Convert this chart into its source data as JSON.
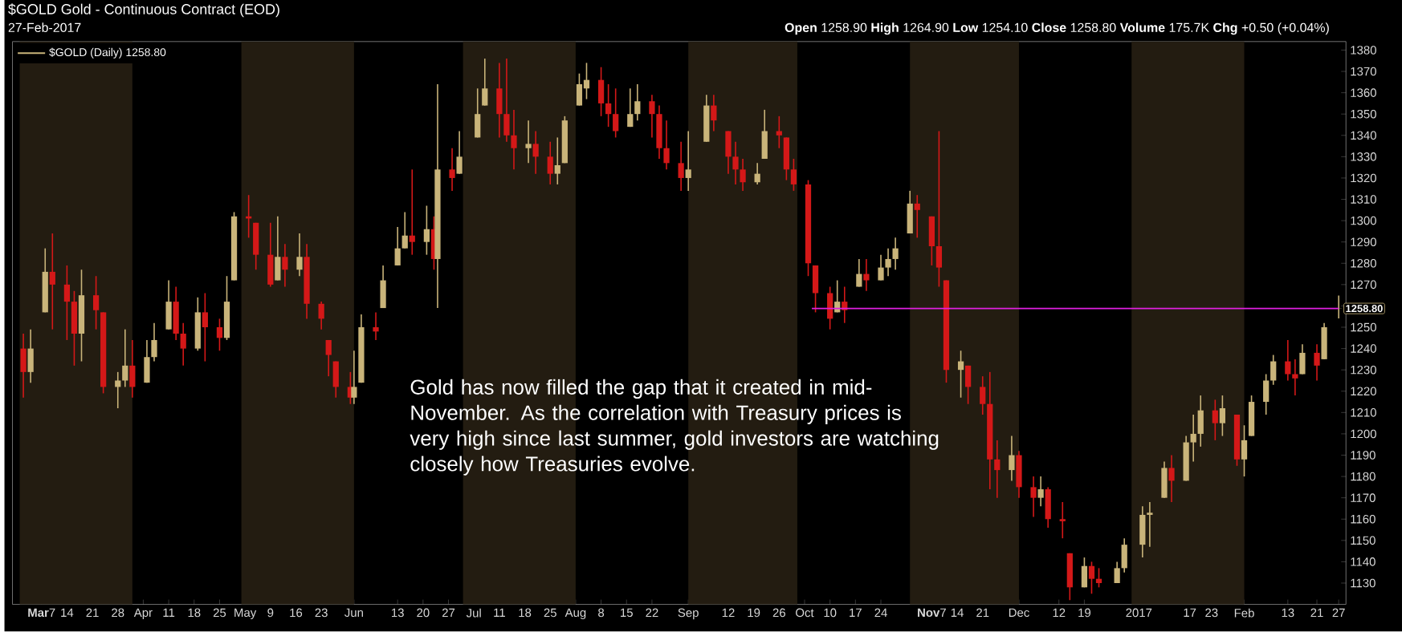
{
  "chart_data": {
    "type": "candlestick",
    "title": "$GOLD Gold - Continuous Contract (EOD)",
    "subtitle": "27-Feb-2017",
    "annotations": [
      "**Open** 1258.90 **High** 1264.90 **Low** 1254.10 **Close** 1258.80 **Volume** 175.7K **Chg** +0.50 (+0.04%)",
      "Gold has now filled the gap that it created in mid-November. As the correlation with Treasury prices is very high since last summer, gold investors are watching closely how Treasuries evolve.",
      {
        "text": "1258.80",
        "x": "2017-02-27",
        "y": 1258.8
      }
    ],
    "legend": "top left",
    "xlim": [
      "2016-02-28",
      "2017-03-01"
    ],
    "xticks": [
      {
        "value": "2016-03-07",
        "label": "**Mar**7"
      },
      {
        "value": "2016-03-14",
        "label": "14"
      },
      {
        "value": "2016-03-21",
        "label": "21"
      },
      {
        "value": "2016-03-28",
        "label": "28"
      },
      {
        "value": "2016-04-04",
        "label": "Apr"
      },
      {
        "value": "2016-04-11",
        "label": "11"
      },
      {
        "value": "2016-04-18",
        "label": "18"
      },
      {
        "value": "2016-04-25",
        "label": "25"
      },
      {
        "value": "2016-05-02",
        "label": "May"
      },
      {
        "value": "2016-05-09",
        "label": "9"
      },
      {
        "value": "2016-05-16",
        "label": "16"
      },
      {
        "value": "2016-05-23",
        "label": "23"
      },
      {
        "value": "2016-06-01",
        "label": "Jun"
      },
      {
        "value": "2016-06-13",
        "label": "13"
      },
      {
        "value": "2016-06-20",
        "label": "20"
      },
      {
        "value": "2016-06-27",
        "label": "27"
      },
      {
        "value": "2016-07-04",
        "label": "Jul"
      },
      {
        "value": "2016-07-11",
        "label": "11"
      },
      {
        "value": "2016-07-18",
        "label": "18"
      },
      {
        "value": "2016-07-25",
        "label": "25"
      },
      {
        "value": "2016-08-01",
        "label": "Aug"
      },
      {
        "value": "2016-08-08",
        "label": "8"
      },
      {
        "value": "2016-08-15",
        "label": "15"
      },
      {
        "value": "2016-08-22",
        "label": "22"
      },
      {
        "value": "2016-09-01",
        "label": "Sep"
      },
      {
        "value": "2016-09-12",
        "label": "12"
      },
      {
        "value": "2016-09-19",
        "label": "19"
      },
      {
        "value": "2016-09-26",
        "label": "26"
      },
      {
        "value": "2016-10-03",
        "label": "Oct"
      },
      {
        "value": "2016-10-10",
        "label": "10"
      },
      {
        "value": "2016-10-17",
        "label": "17"
      },
      {
        "value": "2016-10-24",
        "label": "24"
      },
      {
        "value": "2016-11-07",
        "label": "**Nov**7"
      },
      {
        "value": "2016-11-14",
        "label": "14"
      },
      {
        "value": "2016-11-21",
        "label": "21"
      },
      {
        "value": "2016-12-01",
        "label": "Dec"
      },
      {
        "value": "2016-12-12",
        "label": "12"
      },
      {
        "value": "2016-12-19",
        "label": "19"
      },
      {
        "value": "2017-01-03",
        "label": "2017"
      },
      {
        "value": "2017-01-17",
        "label": "17"
      },
      {
        "value": "2017-01-23",
        "label": "23"
      },
      {
        "value": "2017-02-01",
        "label": "Feb"
      },
      {
        "value": "2017-02-13",
        "label": "13"
      },
      {
        "value": "2017-02-21",
        "label": "21"
      },
      {
        "value": "2017-02-27",
        "label": "27"
      }
    ],
    "ylim": [
      1120,
      1384
    ],
    "yticks": [
      1130,
      1140,
      1150,
      1160,
      1170,
      1180,
      1190,
      1200,
      1210,
      1220,
      1230,
      1240,
      1250,
      {
        "value": 1260,
        "label": null
      },
      1270,
      1280,
      1290,
      1300,
      1310,
      1320,
      1330,
      1340,
      1350,
      1360,
      1370,
      1380
    ],
    "bands": [
      {
        "axis": "x",
        "from": "2016-03-01",
        "to": "2016-04-01",
        "color": "#231c11"
      },
      {
        "axis": "x",
        "from": "2016-05-01",
        "to": "2016-06-01",
        "color": "#231c11"
      },
      {
        "axis": "x",
        "from": "2016-07-01",
        "to": "2016-08-01",
        "color": "#231c11"
      },
      {
        "axis": "x",
        "from": "2016-09-01",
        "to": "2016-10-01",
        "color": "#231c11"
      },
      {
        "axis": "x",
        "from": "2016-11-01",
        "to": "2016-12-01",
        "color": "#231c11"
      },
      {
        "axis": "x",
        "from": "2017-01-01",
        "to": "2017-02-01",
        "color": "#231c11"
      }
    ],
    "series": [
      {
        "type": "candlestick",
        "name": "$GOLD (Daily) 1258.80",
        "x": [
          "2016-03-02",
          "2016-03-04",
          "2016-03-08",
          "2016-03-10",
          "2016-03-14",
          "2016-03-16",
          "2016-03-18",
          "2016-03-22",
          "2016-03-24",
          "2016-03-28",
          "2016-03-30",
          "2016-04-01",
          "2016-04-05",
          "2016-04-07",
          "2016-04-11",
          "2016-04-13",
          "2016-04-15",
          "2016-04-19",
          "2016-04-21",
          "2016-04-25",
          "2016-04-27",
          "2016-04-29",
          "2016-05-03",
          "2016-05-05",
          "2016-05-09",
          "2016-05-11",
          "2016-05-13",
          "2016-05-17",
          "2016-05-19",
          "2016-05-23",
          "2016-05-25",
          "2016-05-27",
          "2016-05-31",
          "2016-06-01",
          "2016-06-03",
          "2016-06-07",
          "2016-06-09",
          "2016-06-13",
          "2016-06-15",
          "2016-06-17",
          "2016-06-21",
          "2016-06-23",
          "2016-06-24",
          "2016-06-28",
          "2016-06-30",
          "2016-07-05",
          "2016-07-07",
          "2016-07-11",
          "2016-07-13",
          "2016-07-15",
          "2016-07-19",
          "2016-07-21",
          "2016-07-25",
          "2016-07-27",
          "2016-07-29",
          "2016-08-02",
          "2016-08-04",
          "2016-08-08",
          "2016-08-10",
          "2016-08-12",
          "2016-08-16",
          "2016-08-18",
          "2016-08-22",
          "2016-08-24",
          "2016-08-26",
          "2016-08-30",
          "2016-09-01",
          "2016-09-06",
          "2016-09-08",
          "2016-09-12",
          "2016-09-14",
          "2016-09-16",
          "2016-09-20",
          "2016-09-22",
          "2016-09-26",
          "2016-09-28",
          "2016-09-30",
          "2016-10-04",
          "2016-10-06",
          "2016-10-10",
          "2016-10-12",
          "2016-10-14",
          "2016-10-18",
          "2016-10-20",
          "2016-10-24",
          "2016-10-26",
          "2016-10-28",
          "2016-11-01",
          "2016-11-03",
          "2016-11-07",
          "2016-11-09",
          "2016-11-11",
          "2016-11-15",
          "2016-11-17",
          "2016-11-21",
          "2016-11-23",
          "2016-11-25",
          "2016-11-29",
          "2016-12-01",
          "2016-12-05",
          "2016-12-07",
          "2016-12-09",
          "2016-12-13",
          "2016-12-15",
          "2016-12-19",
          "2016-12-21",
          "2016-12-23",
          "2016-12-28",
          "2016-12-30",
          "2017-01-04",
          "2017-01-06",
          "2017-01-10",
          "2017-01-12",
          "2017-01-16",
          "2017-01-18",
          "2017-01-20",
          "2017-01-24",
          "2017-01-26",
          "2017-01-30",
          "2017-02-01",
          "2017-02-03",
          "2017-02-07",
          "2017-02-09",
          "2017-02-13",
          "2017-02-15",
          "2017-02-17",
          "2017-02-21",
          "2017-02-23",
          "2017-02-27"
        ],
        "ohlc": [
          [
            1240,
            1247,
            1217,
            1229
          ],
          [
            1229,
            1249,
            1224,
            1240
          ],
          [
            1257,
            1287,
            1257,
            1276
          ],
          [
            1276,
            1294,
            1249,
            1270
          ],
          [
            1270,
            1279,
            1244,
            1262
          ],
          [
            1262,
            1267,
            1232,
            1247
          ],
          [
            1247,
            1277,
            1234,
            1265
          ],
          [
            1265,
            1274,
            1249,
            1258
          ],
          [
            1257,
            1257,
            1219,
            1222
          ],
          [
            1222,
            1229,
            1212,
            1225
          ],
          [
            1225,
            1249,
            1222,
            1232
          ],
          [
            1232,
            1244,
            1217,
            1222
          ],
          [
            1224,
            1244,
            1224,
            1236
          ],
          [
            1236,
            1252,
            1234,
            1244
          ],
          [
            1249,
            1272,
            1249,
            1262
          ],
          [
            1262,
            1269,
            1244,
            1247
          ],
          [
            1247,
            1252,
            1232,
            1240
          ],
          [
            1240,
            1264,
            1239,
            1257
          ],
          [
            1257,
            1266,
            1234,
            1250
          ],
          [
            1250,
            1254,
            1239,
            1245
          ],
          [
            1245,
            1274,
            1244,
            1262
          ],
          [
            1272,
            1304,
            1272,
            1302
          ],
          [
            1302,
            1312,
            1292,
            1301
          ],
          [
            1299,
            1299,
            1277,
            1284
          ],
          [
            1284,
            1299,
            1269,
            1270
          ],
          [
            1272,
            1302,
            1272,
            1283
          ],
          [
            1283,
            1289,
            1269,
            1277
          ],
          [
            1277,
            1294,
            1274,
            1283
          ],
          [
            1283,
            1289,
            1254,
            1261
          ],
          [
            1261,
            1262,
            1249,
            1254
          ],
          [
            1244,
            1244,
            1227,
            1237
          ],
          [
            1234,
            1234,
            1217,
            1222
          ],
          [
            1222,
            1229,
            1214,
            1217
          ],
          [
            1217,
            1239,
            1214,
            1222
          ],
          [
            1224,
            1256,
            1224,
            1250
          ],
          [
            1250,
            1257,
            1244,
            1248
          ],
          [
            1259,
            1279,
            1259,
            1272
          ],
          [
            1279,
            1297,
            1279,
            1287
          ],
          [
            1287,
            1304,
            1287,
            1293
          ],
          [
            1293,
            1324,
            1284,
            1290
          ],
          [
            1290,
            1307,
            1284,
            1296
          ],
          [
            1296,
            1302,
            1277,
            1282
          ],
          [
            1282,
            1364,
            1259,
            1324
          ],
          [
            1324,
            1334,
            1314,
            1320
          ],
          [
            1322,
            1342,
            1322,
            1330
          ],
          [
            1339,
            1362,
            1339,
            1350
          ],
          [
            1354,
            1376,
            1354,
            1362
          ],
          [
            1362,
            1374,
            1339,
            1350
          ],
          [
            1350,
            1376,
            1337,
            1340
          ],
          [
            1340,
            1352,
            1324,
            1334
          ],
          [
            1334,
            1347,
            1327,
            1336
          ],
          [
            1336,
            1342,
            1322,
            1330
          ],
          [
            1330,
            1337,
            1317,
            1322
          ],
          [
            1322,
            1339,
            1317,
            1326
          ],
          [
            1327,
            1349,
            1327,
            1347
          ],
          [
            1354,
            1369,
            1354,
            1364
          ],
          [
            1362,
            1374,
            1357,
            1366
          ],
          [
            1366,
            1372,
            1349,
            1355
          ],
          [
            1355,
            1364,
            1344,
            1350
          ],
          [
            1350,
            1362,
            1339,
            1342
          ],
          [
            1344,
            1362,
            1344,
            1350
          ],
          [
            1350,
            1364,
            1347,
            1356
          ],
          [
            1356,
            1359,
            1339,
            1350
          ],
          [
            1350,
            1354,
            1329,
            1334
          ],
          [
            1334,
            1347,
            1324,
            1327
          ],
          [
            1327,
            1337,
            1314,
            1320
          ],
          [
            1320,
            1342,
            1314,
            1324
          ],
          [
            1337,
            1359,
            1337,
            1354
          ],
          [
            1354,
            1359,
            1342,
            1347
          ],
          [
            1342,
            1342,
            1322,
            1330
          ],
          [
            1330,
            1337,
            1317,
            1324
          ],
          [
            1324,
            1329,
            1314,
            1318
          ],
          [
            1318,
            1327,
            1317,
            1322
          ],
          [
            1329,
            1352,
            1329,
            1342
          ],
          [
            1342,
            1349,
            1334,
            1340
          ],
          [
            1339,
            1339,
            1319,
            1324
          ],
          [
            1324,
            1329,
            1314,
            1317
          ],
          [
            1317,
            1319,
            1274,
            1280
          ],
          [
            1279,
            1279,
            1257,
            1266
          ],
          [
            1266,
            1269,
            1249,
            1254
          ],
          [
            1257,
            1272,
            1257,
            1262
          ],
          [
            1262,
            1269,
            1252,
            1258
          ],
          [
            1269,
            1282,
            1269,
            1275
          ],
          [
            1275,
            1282,
            1267,
            1272
          ],
          [
            1272,
            1284,
            1272,
            1278
          ],
          [
            1278,
            1287,
            1274,
            1282
          ],
          [
            1282,
            1292,
            1277,
            1287
          ],
          [
            1294,
            1314,
            1294,
            1308
          ],
          [
            1308,
            1312,
            1292,
            1305
          ],
          [
            1302,
            1302,
            1279,
            1288
          ],
          [
            1288,
            1342,
            1269,
            1278
          ],
          [
            1272,
            1272,
            1224,
            1230
          ],
          [
            1230,
            1239,
            1217,
            1234
          ],
          [
            1232,
            1232,
            1214,
            1222
          ],
          [
            1222,
            1227,
            1209,
            1214
          ],
          [
            1214,
            1229,
            1174,
            1188
          ],
          [
            1188,
            1197,
            1170,
            1183
          ],
          [
            1183,
            1199,
            1178,
            1190
          ],
          [
            1190,
            1192,
            1170,
            1175
          ],
          [
            1175,
            1180,
            1161,
            1170
          ],
          [
            1170,
            1180,
            1166,
            1174
          ],
          [
            1174,
            1175,
            1156,
            1160
          ],
          [
            1160,
            1168,
            1151,
            1159
          ],
          [
            1144,
            1144,
            1122,
            1128
          ],
          [
            1128,
            1142,
            1128,
            1138
          ],
          [
            1138,
            1140,
            1125,
            1132
          ],
          [
            1132,
            1137,
            1128,
            1130
          ],
          [
            1130,
            1140,
            1130,
            1137
          ],
          [
            1137,
            1151,
            1135,
            1148
          ],
          [
            1148,
            1166,
            1142,
            1162
          ],
          [
            1162,
            1168,
            1147,
            1163
          ],
          [
            1170,
            1187,
            1170,
            1184
          ],
          [
            1184,
            1190,
            1168,
            1178
          ],
          [
            1178,
            1199,
            1178,
            1196
          ],
          [
            1196,
            1209,
            1187,
            1200
          ],
          [
            1200,
            1218,
            1194,
            1211
          ],
          [
            1211,
            1216,
            1197,
            1205
          ],
          [
            1205,
            1218,
            1199,
            1212
          ],
          [
            1209,
            1209,
            1185,
            1188
          ],
          [
            1188,
            1204,
            1180,
            1197
          ],
          [
            1199,
            1218,
            1199,
            1215
          ],
          [
            1215,
            1228,
            1209,
            1225
          ],
          [
            1225,
            1237,
            1223,
            1234
          ],
          [
            1234,
            1244,
            1225,
            1228
          ],
          [
            1228,
            1235,
            1218,
            1226
          ],
          [
            1228,
            1242,
            1228,
            1238
          ],
          [
            1238,
            1242,
            1225,
            1232
          ],
          [
            1235,
            1252,
            1235,
            1250
          ],
          [
            1258.9,
            1264.9,
            1254.1,
            1258.8
          ]
        ],
        "colors": [
          "#d41818",
          "#c9b47a",
          "#c9b47a",
          "#d41818",
          "#d41818",
          "#d41818",
          "#c9b47a",
          "#d41818",
          "#d41818",
          "#c9b47a",
          "#c9b47a",
          "#d41818",
          "#c9b47a",
          "#c9b47a",
          "#c9b47a",
          "#d41818",
          "#d41818",
          "#c9b47a",
          "#d41818",
          "#d41818",
          "#c9b47a",
          "#c9b47a",
          "#d41818",
          "#d41818",
          "#d41818",
          "#c9b47a",
          "#d41818",
          "#c9b47a",
          "#d41818",
          "#d41818",
          "#d41818",
          "#d41818",
          "#d41818",
          "#c9b47a",
          "#c9b47a",
          "#d41818",
          "#c9b47a",
          "#c9b47a",
          "#c9b47a",
          "#d41818",
          "#c9b47a",
          "#d41818",
          "#c9b47a",
          "#d41818",
          "#c9b47a",
          "#c9b47a",
          "#c9b47a",
          "#d41818",
          "#d41818",
          "#d41818",
          "#c9b47a",
          "#d41818",
          "#d41818",
          "#c9b47a",
          "#c9b47a",
          "#c9b47a",
          "#c9b47a",
          "#d41818",
          "#d41818",
          "#d41818",
          "#c9b47a",
          "#c9b47a",
          "#d41818",
          "#d41818",
          "#d41818",
          "#d41818",
          "#c9b47a",
          "#c9b47a",
          "#d41818",
          "#d41818",
          "#d41818",
          "#d41818",
          "#c9b47a",
          "#c9b47a",
          "#d41818",
          "#d41818",
          "#d41818",
          "#d41818",
          "#d41818",
          "#d41818",
          "#c9b47a",
          "#d41818",
          "#c9b47a",
          "#d41818",
          "#c9b47a",
          "#c9b47a",
          "#c9b47a",
          "#c9b47a",
          "#d41818",
          "#d41818",
          "#d41818",
          "#d41818",
          "#c9b47a",
          "#d41818",
          "#d41818",
          "#d41818",
          "#d41818",
          "#c9b47a",
          "#d41818",
          "#d41818",
          "#c9b47a",
          "#d41818",
          "#d41818",
          "#d41818",
          "#c9b47a",
          "#d41818",
          "#d41818",
          "#c9b47a",
          "#c9b47a",
          "#c9b47a",
          "#c9b47a",
          "#c9b47a",
          "#d41818",
          "#c9b47a",
          "#c9b47a",
          "#c9b47a",
          "#d41818",
          "#c9b47a",
          "#d41818",
          "#c9b47a",
          "#c9b47a",
          "#c9b47a",
          "#c9b47a",
          "#d41818",
          "#d41818",
          "#c9b47a",
          "#d41818",
          "#c9b47a",
          "#c9b47a"
        ]
      },
      {
        "type": "line",
        "x": [
          "2016-10-05",
          "2017-02-27"
        ],
        "values": [
          1258.8,
          1258.8
        ],
        "color": "#e020e0"
      }
    ]
  }
}
